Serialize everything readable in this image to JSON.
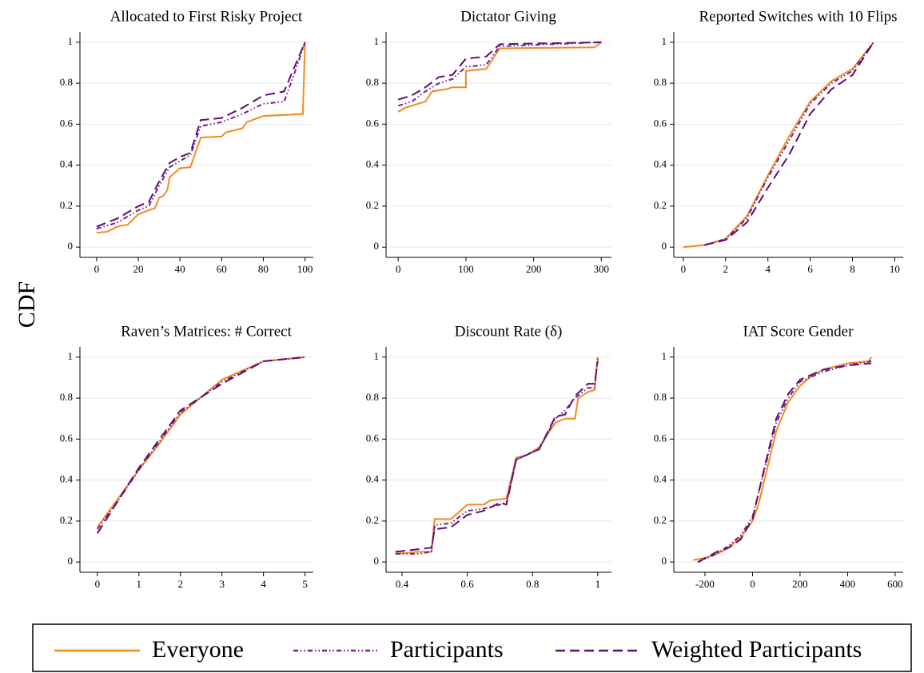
{
  "ylabel": "CDF",
  "chart_data": [
    {
      "type": "line",
      "title": "Allocated to First Risky Project",
      "xlim": [
        -8,
        104
      ],
      "ylim": [
        -0.05,
        1.05
      ],
      "xticks": [
        0,
        20,
        40,
        60,
        80,
        100
      ],
      "yticks": [
        0,
        0.2,
        0.4,
        0.6,
        0.8,
        1
      ],
      "grid": true,
      "series": [
        {
          "name": "Everyone",
          "color": "#f5891f",
          "dash": "solid",
          "x": [
            0,
            5,
            10,
            15,
            20,
            25,
            28,
            30,
            32,
            34,
            35,
            40,
            45,
            50,
            60,
            62,
            70,
            72,
            80,
            90,
            99,
            100
          ],
          "values": [
            0.07,
            0.075,
            0.1,
            0.11,
            0.16,
            0.18,
            0.19,
            0.24,
            0.25,
            0.28,
            0.34,
            0.385,
            0.39,
            0.535,
            0.54,
            0.56,
            0.58,
            0.61,
            0.64,
            0.645,
            0.65,
            1.0
          ]
        },
        {
          "name": "Participants",
          "color": "#7a1f86",
          "dash": "dashdot",
          "x": [
            0,
            10,
            20,
            25,
            30,
            35,
            40,
            45,
            50,
            60,
            70,
            80,
            90,
            95,
            100
          ],
          "values": [
            0.09,
            0.12,
            0.18,
            0.2,
            0.3,
            0.39,
            0.42,
            0.45,
            0.59,
            0.61,
            0.65,
            0.7,
            0.71,
            0.85,
            1.0
          ]
        },
        {
          "name": "Weighted Participants",
          "color": "#5e0e74",
          "dash": "dash",
          "x": [
            0,
            10,
            20,
            25,
            30,
            35,
            40,
            45,
            50,
            60,
            70,
            80,
            90,
            100
          ],
          "values": [
            0.1,
            0.14,
            0.2,
            0.22,
            0.32,
            0.41,
            0.44,
            0.46,
            0.62,
            0.63,
            0.68,
            0.74,
            0.76,
            1.0
          ]
        }
      ]
    },
    {
      "type": "line",
      "title": "Dictator Giving",
      "xlim": [
        -18,
        315
      ],
      "ylim": [
        -0.05,
        1.05
      ],
      "xticks": [
        0,
        100,
        200,
        300
      ],
      "yticks": [
        0,
        0.2,
        0.4,
        0.6,
        0.8,
        1
      ],
      "grid": true,
      "series": [
        {
          "name": "Everyone",
          "color": "#f5891f",
          "dash": "solid",
          "x": [
            0,
            10,
            30,
            40,
            50,
            70,
            80,
            100,
            100,
            130,
            150,
            290,
            300
          ],
          "values": [
            0.66,
            0.68,
            0.7,
            0.71,
            0.76,
            0.77,
            0.78,
            0.78,
            0.86,
            0.87,
            0.97,
            0.975,
            1.0
          ]
        },
        {
          "name": "Participants",
          "color": "#7a1f86",
          "dash": "dashdot",
          "x": [
            0,
            20,
            40,
            60,
            80,
            100,
            130,
            150,
            300
          ],
          "values": [
            0.69,
            0.71,
            0.76,
            0.8,
            0.82,
            0.88,
            0.89,
            0.98,
            1.0
          ]
        },
        {
          "name": "Weighted Participants",
          "color": "#5e0e74",
          "dash": "dash",
          "x": [
            0,
            20,
            40,
            60,
            80,
            100,
            130,
            150,
            300
          ],
          "values": [
            0.72,
            0.74,
            0.78,
            0.83,
            0.84,
            0.92,
            0.93,
            0.99,
            1.0
          ]
        }
      ]
    },
    {
      "type": "line",
      "title": "Reported Switches with 10 Flips",
      "xlim": [
        -0.45,
        10.4
      ],
      "ylim": [
        -0.05,
        1.05
      ],
      "xticks": [
        0,
        2,
        4,
        6,
        8,
        10
      ],
      "yticks": [
        0,
        0.2,
        0.4,
        0.6,
        0.8,
        1
      ],
      "grid": true,
      "series": [
        {
          "name": "Everyone",
          "color": "#f5891f",
          "dash": "solid",
          "x": [
            0,
            1,
            2,
            3,
            4,
            5,
            6,
            7,
            8,
            9
          ],
          "values": [
            0,
            0.01,
            0.04,
            0.15,
            0.35,
            0.54,
            0.71,
            0.81,
            0.87,
            1.0
          ]
        },
        {
          "name": "Participants",
          "color": "#7a1f86",
          "dash": "dashdot",
          "x": [
            1,
            2,
            3,
            4,
            5,
            6,
            7,
            8,
            9
          ],
          "values": [
            0.01,
            0.04,
            0.14,
            0.34,
            0.52,
            0.7,
            0.8,
            0.86,
            1.0
          ]
        },
        {
          "name": "Weighted Participants",
          "color": "#5e0e74",
          "dash": "dash",
          "x": [
            1,
            2,
            3,
            4,
            5,
            6,
            7,
            8,
            9
          ],
          "values": [
            0.01,
            0.035,
            0.12,
            0.29,
            0.45,
            0.65,
            0.77,
            0.84,
            1.0
          ]
        }
      ]
    },
    {
      "type": "line",
      "title": "Raven’s Matrices: # Correct",
      "xlim": [
        -0.42,
        5.2
      ],
      "ylim": [
        -0.05,
        1.05
      ],
      "xticks": [
        0,
        1,
        2,
        3,
        4,
        5
      ],
      "yticks": [
        0,
        0.2,
        0.4,
        0.6,
        0.8,
        1
      ],
      "grid": true,
      "series": [
        {
          "name": "Everyone",
          "color": "#f5891f",
          "dash": "solid",
          "x": [
            0,
            0.5,
            1,
            1.5,
            2,
            3,
            4,
            5
          ],
          "values": [
            0.17,
            0.31,
            0.45,
            0.58,
            0.72,
            0.89,
            0.98,
            1.0
          ]
        },
        {
          "name": "Participants",
          "color": "#7a1f86",
          "dash": "dashdot",
          "x": [
            0,
            0.5,
            1,
            1.5,
            2,
            3,
            4,
            5
          ],
          "values": [
            0.16,
            0.3,
            0.45,
            0.59,
            0.73,
            0.88,
            0.98,
            1.0
          ]
        },
        {
          "name": "Weighted Participants",
          "color": "#5e0e74",
          "dash": "dash",
          "x": [
            0,
            0.5,
            1,
            1.5,
            2,
            3,
            4,
            5
          ],
          "values": [
            0.14,
            0.3,
            0.46,
            0.6,
            0.74,
            0.87,
            0.98,
            1.0
          ]
        }
      ]
    },
    {
      "type": "line",
      "title": "Discount Rate (δ)",
      "xlim": [
        0.351,
        1.042
      ],
      "ylim": [
        -0.05,
        1.05
      ],
      "xticks": [
        0.4,
        0.6,
        0.8,
        1
      ],
      "yticks": [
        0,
        0.2,
        0.4,
        0.6,
        0.8,
        1
      ],
      "grid": true,
      "series": [
        {
          "name": "Everyone",
          "color": "#f5891f",
          "dash": "solid",
          "x": [
            0.38,
            0.45,
            0.49,
            0.5,
            0.55,
            0.6,
            0.65,
            0.67,
            0.72,
            0.75,
            0.78,
            0.82,
            0.87,
            0.9,
            0.93,
            0.94,
            0.97,
            0.99,
            1.0
          ],
          "values": [
            0.04,
            0.05,
            0.05,
            0.21,
            0.21,
            0.28,
            0.28,
            0.3,
            0.31,
            0.51,
            0.52,
            0.56,
            0.68,
            0.7,
            0.7,
            0.8,
            0.83,
            0.84,
            1.0
          ]
        },
        {
          "name": "Participants",
          "color": "#7a1f86",
          "dash": "dashdot",
          "x": [
            0.38,
            0.45,
            0.49,
            0.5,
            0.55,
            0.6,
            0.65,
            0.7,
            0.72,
            0.75,
            0.82,
            0.87,
            0.9,
            0.93,
            0.97,
            0.99,
            1.0
          ],
          "values": [
            0.04,
            0.04,
            0.05,
            0.18,
            0.19,
            0.25,
            0.26,
            0.28,
            0.29,
            0.5,
            0.55,
            0.7,
            0.74,
            0.8,
            0.85,
            0.85,
            1.0
          ]
        },
        {
          "name": "Weighted Participants",
          "color": "#5e0e74",
          "dash": "dash",
          "x": [
            0.38,
            0.49,
            0.5,
            0.55,
            0.6,
            0.65,
            0.7,
            0.72,
            0.75,
            0.82,
            0.87,
            0.9,
            0.93,
            0.97,
            0.99,
            1.0
          ],
          "values": [
            0.05,
            0.07,
            0.16,
            0.17,
            0.23,
            0.25,
            0.29,
            0.28,
            0.5,
            0.55,
            0.71,
            0.72,
            0.81,
            0.87,
            0.87,
            0.98
          ]
        }
      ]
    },
    {
      "type": "line",
      "title": "IAT Score Gender",
      "xlim": [
        -331,
        634
      ],
      "ylim": [
        -0.05,
        1.05
      ],
      "xticks": [
        -200,
        0,
        200,
        400,
        600
      ],
      "yticks": [
        0,
        0.2,
        0.4,
        0.6,
        0.8,
        1
      ],
      "grid": true,
      "series": [
        {
          "name": "Everyone",
          "color": "#f5891f",
          "dash": "solid",
          "x": [
            -250,
            -200,
            -150,
            -100,
            -50,
            0,
            25,
            50,
            75,
            100,
            150,
            200,
            250,
            300,
            400,
            490,
            500
          ],
          "values": [
            0.01,
            0.02,
            0.04,
            0.07,
            0.12,
            0.2,
            0.28,
            0.4,
            0.52,
            0.64,
            0.78,
            0.86,
            0.91,
            0.94,
            0.97,
            0.98,
            1.0
          ]
        },
        {
          "name": "Participants",
          "color": "#7a1f86",
          "dash": "dashdot",
          "x": [
            -230,
            -150,
            -100,
            -50,
            0,
            50,
            100,
            150,
            200,
            300,
            400,
            500
          ],
          "values": [
            0.0,
            0.04,
            0.08,
            0.13,
            0.22,
            0.45,
            0.68,
            0.8,
            0.88,
            0.93,
            0.96,
            0.98
          ]
        },
        {
          "name": "Weighted Participants",
          "color": "#5e0e74",
          "dash": "dash",
          "x": [
            -230,
            -150,
            -100,
            -50,
            0,
            50,
            100,
            150,
            200,
            300,
            400,
            500
          ],
          "values": [
            0.0,
            0.05,
            0.07,
            0.11,
            0.21,
            0.46,
            0.7,
            0.82,
            0.89,
            0.94,
            0.96,
            0.97
          ]
        }
      ]
    }
  ]
}
